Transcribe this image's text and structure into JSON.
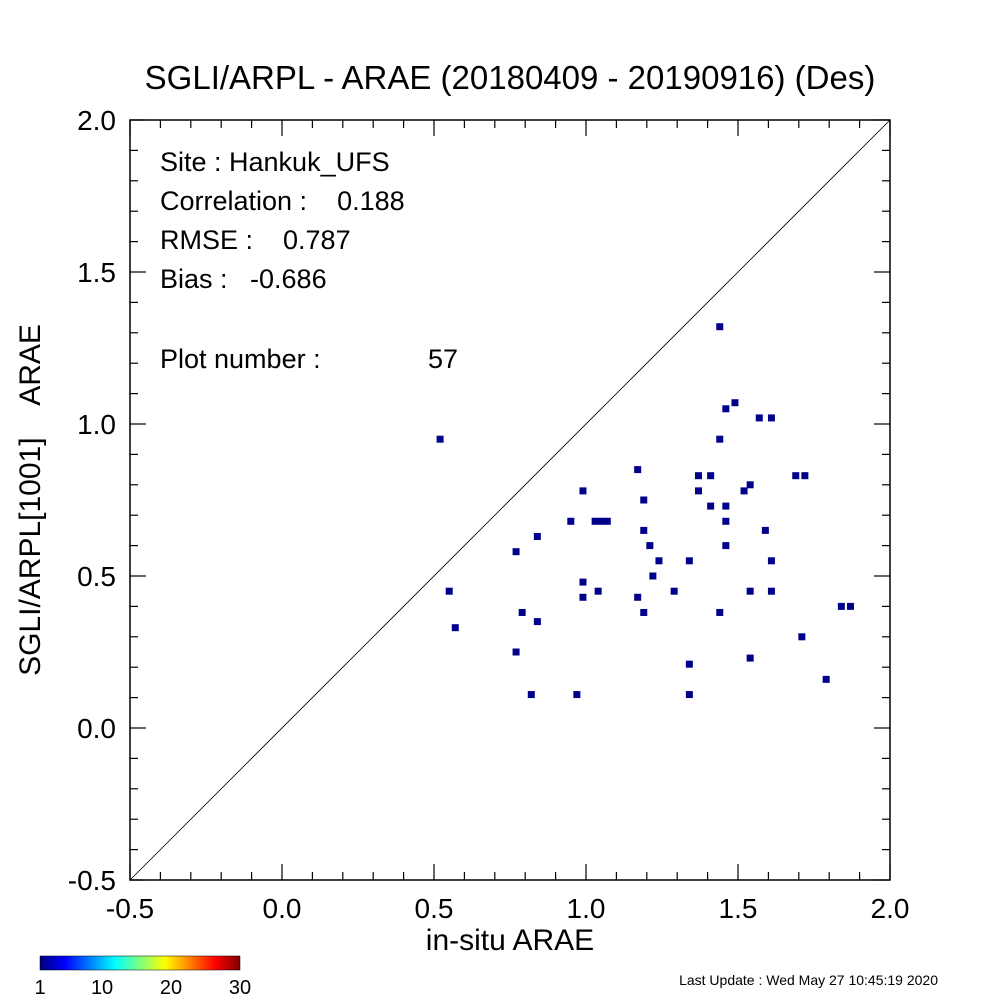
{
  "chart_data": {
    "type": "scatter",
    "title": "SGLI/ARPL - ARAE (20180409 - 20190916) (Des)",
    "xlabel": "in-situ ARAE",
    "ylabel": "SGLI/ARPL[1001]    ARAE",
    "xlim": [
      -0.5,
      2.0
    ],
    "ylim": [
      -0.5,
      2.0
    ],
    "xticks": [
      "-0.5",
      "0.0",
      "0.5",
      "1.0",
      "1.5",
      "2.0"
    ],
    "yticks": [
      "-0.5",
      "0.0",
      "0.5",
      "1.0",
      "1.5",
      "2.0"
    ],
    "reference_line": "1:1",
    "grid": false,
    "marker_color": "#00008b",
    "points": [
      {
        "x": 0.52,
        "y": 0.95
      },
      {
        "x": 0.55,
        "y": 0.45
      },
      {
        "x": 0.57,
        "y": 0.33
      },
      {
        "x": 0.77,
        "y": 0.58
      },
      {
        "x": 0.77,
        "y": 0.25
      },
      {
        "x": 0.79,
        "y": 0.38
      },
      {
        "x": 0.82,
        "y": 0.11
      },
      {
        "x": 0.84,
        "y": 0.63
      },
      {
        "x": 0.84,
        "y": 0.35
      },
      {
        "x": 0.95,
        "y": 0.68
      },
      {
        "x": 0.97,
        "y": 0.11
      },
      {
        "x": 0.99,
        "y": 0.78
      },
      {
        "x": 0.99,
        "y": 0.48
      },
      {
        "x": 0.99,
        "y": 0.43
      },
      {
        "x": 1.03,
        "y": 0.68
      },
      {
        "x": 1.05,
        "y": 0.68
      },
      {
        "x": 1.07,
        "y": 0.68
      },
      {
        "x": 1.04,
        "y": 0.45
      },
      {
        "x": 1.17,
        "y": 0.85
      },
      {
        "x": 1.19,
        "y": 0.75
      },
      {
        "x": 1.19,
        "y": 0.65
      },
      {
        "x": 1.21,
        "y": 0.6
      },
      {
        "x": 1.24,
        "y": 0.55
      },
      {
        "x": 1.22,
        "y": 0.5
      },
      {
        "x": 1.17,
        "y": 0.43
      },
      {
        "x": 1.19,
        "y": 0.38
      },
      {
        "x": 1.29,
        "y": 0.45
      },
      {
        "x": 1.34,
        "y": 0.55
      },
      {
        "x": 1.34,
        "y": 0.21
      },
      {
        "x": 1.34,
        "y": 0.11
      },
      {
        "x": 1.37,
        "y": 0.83
      },
      {
        "x": 1.37,
        "y": 0.78
      },
      {
        "x": 1.41,
        "y": 0.83
      },
      {
        "x": 1.41,
        "y": 0.73
      },
      {
        "x": 1.44,
        "y": 1.32
      },
      {
        "x": 1.44,
        "y": 0.95
      },
      {
        "x": 1.44,
        "y": 0.38
      },
      {
        "x": 1.46,
        "y": 1.05
      },
      {
        "x": 1.46,
        "y": 0.73
      },
      {
        "x": 1.46,
        "y": 0.68
      },
      {
        "x": 1.46,
        "y": 0.6
      },
      {
        "x": 1.49,
        "y": 1.07
      },
      {
        "x": 1.52,
        "y": 0.78
      },
      {
        "x": 1.54,
        "y": 0.8
      },
      {
        "x": 1.54,
        "y": 0.45
      },
      {
        "x": 1.54,
        "y": 0.23
      },
      {
        "x": 1.57,
        "y": 1.02
      },
      {
        "x": 1.59,
        "y": 0.65
      },
      {
        "x": 1.61,
        "y": 1.02
      },
      {
        "x": 1.61,
        "y": 0.55
      },
      {
        "x": 1.61,
        "y": 0.45
      },
      {
        "x": 1.69,
        "y": 0.83
      },
      {
        "x": 1.72,
        "y": 0.83
      },
      {
        "x": 1.71,
        "y": 0.3
      },
      {
        "x": 1.79,
        "y": 0.16
      },
      {
        "x": 1.84,
        "y": 0.4
      },
      {
        "x": 1.87,
        "y": 0.4
      }
    ],
    "stats": {
      "site": "Site : Hankuk_UFS",
      "correlation": "Correlation :    0.188",
      "rmse": "RMSE :    0.787",
      "bias": "Bias :   -0.686",
      "plot_number_label": "Plot number :",
      "plot_number_value": "57"
    },
    "colorbar": {
      "tick_labels": [
        "1",
        "10",
        "20",
        "30"
      ],
      "range": [
        1,
        30
      ],
      "colormap": "jet"
    }
  },
  "footer": {
    "last_update": "Last Update : Wed May 27 10:45:19 2020"
  }
}
